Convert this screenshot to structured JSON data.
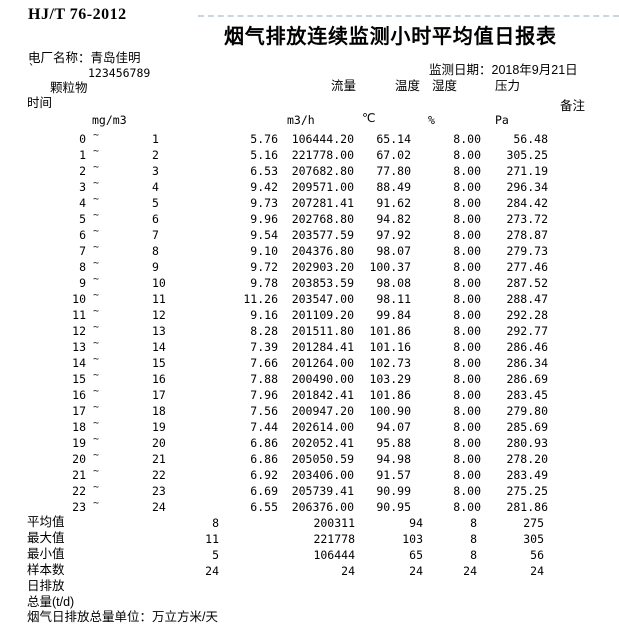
{
  "doc": {
    "standard": "HJ/T 76-2012",
    "title": "烟气排放连续监测小时平均值日报表",
    "plant_line": "电厂名称：青岛佳明",
    "plant_code_mark": "`",
    "plant_code": "123456789",
    "monitor_date_line": "监测日期：2018年9月21日",
    "footer_note": "烟气日排放总量单位：万立方米/天"
  },
  "columns": {
    "time": "时间",
    "pm": "颗粒物",
    "flow": "流量",
    "temp": "温度",
    "humidity": "湿度",
    "pressure": "压力",
    "remark": "备注"
  },
  "units": {
    "pm": "mg/m3",
    "flow": "m3/h",
    "temp": "℃",
    "humidity": "%",
    "pressure": "Pa"
  },
  "table": {
    "tilde": "~",
    "rows": [
      {
        "from": "0",
        "to": "1",
        "pm": "5.76",
        "flow": "106444.20",
        "temp": "65.14",
        "humidity": "8.00",
        "pressure": "56.48"
      },
      {
        "from": "1",
        "to": "2",
        "pm": "5.16",
        "flow": "221778.00",
        "temp": "67.02",
        "humidity": "8.00",
        "pressure": "305.25"
      },
      {
        "from": "2",
        "to": "3",
        "pm": "6.53",
        "flow": "207682.80",
        "temp": "77.80",
        "humidity": "8.00",
        "pressure": "271.19"
      },
      {
        "from": "3",
        "to": "4",
        "pm": "9.42",
        "flow": "209571.00",
        "temp": "88.49",
        "humidity": "8.00",
        "pressure": "296.34"
      },
      {
        "from": "4",
        "to": "5",
        "pm": "9.73",
        "flow": "207281.41",
        "temp": "91.62",
        "humidity": "8.00",
        "pressure": "284.42"
      },
      {
        "from": "5",
        "to": "6",
        "pm": "9.96",
        "flow": "202768.80",
        "temp": "94.82",
        "humidity": "8.00",
        "pressure": "273.72"
      },
      {
        "from": "6",
        "to": "7",
        "pm": "9.54",
        "flow": "203577.59",
        "temp": "97.92",
        "humidity": "8.00",
        "pressure": "278.87"
      },
      {
        "from": "7",
        "to": "8",
        "pm": "9.10",
        "flow": "204376.80",
        "temp": "98.07",
        "humidity": "8.00",
        "pressure": "279.73"
      },
      {
        "from": "8",
        "to": "9",
        "pm": "9.72",
        "flow": "202903.20",
        "temp": "100.37",
        "humidity": "8.00",
        "pressure": "277.46"
      },
      {
        "from": "9",
        "to": "10",
        "pm": "9.78",
        "flow": "203853.59",
        "temp": "98.08",
        "humidity": "8.00",
        "pressure": "287.52"
      },
      {
        "from": "10",
        "to": "11",
        "pm": "11.26",
        "flow": "203547.00",
        "temp": "98.11",
        "humidity": "8.00",
        "pressure": "288.47"
      },
      {
        "from": "11",
        "to": "12",
        "pm": "9.16",
        "flow": "201109.20",
        "temp": "99.84",
        "humidity": "8.00",
        "pressure": "292.28"
      },
      {
        "from": "12",
        "to": "13",
        "pm": "8.28",
        "flow": "201511.80",
        "temp": "101.86",
        "humidity": "8.00",
        "pressure": "292.77"
      },
      {
        "from": "13",
        "to": "14",
        "pm": "7.39",
        "flow": "201284.41",
        "temp": "101.16",
        "humidity": "8.00",
        "pressure": "286.46"
      },
      {
        "from": "14",
        "to": "15",
        "pm": "7.66",
        "flow": "201264.00",
        "temp": "102.73",
        "humidity": "8.00",
        "pressure": "286.34"
      },
      {
        "from": "15",
        "to": "16",
        "pm": "7.88",
        "flow": "200490.00",
        "temp": "103.29",
        "humidity": "8.00",
        "pressure": "286.69"
      },
      {
        "from": "16",
        "to": "17",
        "pm": "7.96",
        "flow": "201842.41",
        "temp": "101.86",
        "humidity": "8.00",
        "pressure": "283.45"
      },
      {
        "from": "17",
        "to": "18",
        "pm": "7.56",
        "flow": "200947.20",
        "temp": "100.90",
        "humidity": "8.00",
        "pressure": "279.80"
      },
      {
        "from": "18",
        "to": "19",
        "pm": "7.44",
        "flow": "202614.00",
        "temp": "94.07",
        "humidity": "8.00",
        "pressure": "285.69"
      },
      {
        "from": "19",
        "to": "20",
        "pm": "6.86",
        "flow": "202052.41",
        "temp": "95.88",
        "humidity": "8.00",
        "pressure": "280.93"
      },
      {
        "from": "20",
        "to": "21",
        "pm": "6.86",
        "flow": "205050.59",
        "temp": "94.98",
        "humidity": "8.00",
        "pressure": "278.20"
      },
      {
        "from": "21",
        "to": "22",
        "pm": "6.92",
        "flow": "203406.00",
        "temp": "91.57",
        "humidity": "8.00",
        "pressure": "283.49"
      },
      {
        "from": "22",
        "to": "23",
        "pm": "6.69",
        "flow": "205739.41",
        "temp": "90.99",
        "humidity": "8.00",
        "pressure": "275.25"
      },
      {
        "from": "23",
        "to": "24",
        "pm": "6.55",
        "flow": "206376.00",
        "temp": "90.95",
        "humidity": "8.00",
        "pressure": "281.86"
      }
    ]
  },
  "summary": {
    "rows": [
      {
        "label": "平均值",
        "pm": "8",
        "flow": "200311",
        "temp": "94",
        "humidity": "8",
        "pressure": "275"
      },
      {
        "label": "最大值",
        "pm": "11",
        "flow": "221778",
        "temp": "103",
        "humidity": "8",
        "pressure": "305"
      },
      {
        "label": "最小值",
        "pm": "5",
        "flow": "106444",
        "temp": "65",
        "humidity": "8",
        "pressure": "56"
      },
      {
        "label": "样本数",
        "pm": "24",
        "flow": "24",
        "temp": "24",
        "humidity": "24",
        "pressure": "24"
      },
      {
        "label": "日排放",
        "pm": "",
        "flow": "",
        "temp": "",
        "humidity": "",
        "pressure": ""
      },
      {
        "label": "总量(t/d)",
        "pm": "",
        "flow": "",
        "temp": "",
        "humidity": "",
        "pressure": ""
      }
    ]
  }
}
